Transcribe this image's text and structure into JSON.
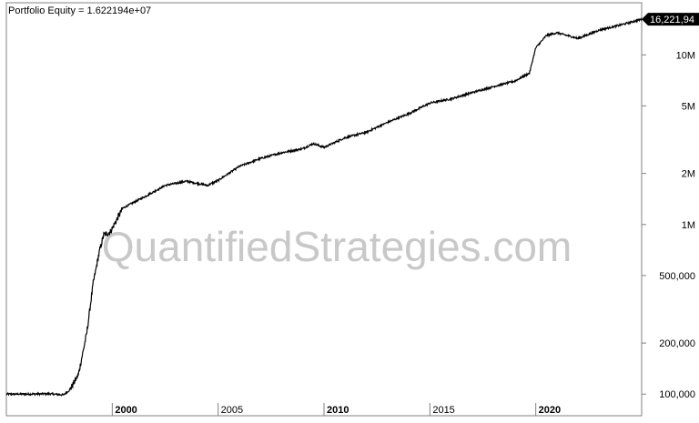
{
  "title": "Portfolio Equity = 1.622194e+07",
  "watermark": "QuantifiedStrategies.com",
  "last_value_label": "16,221,94",
  "colors": {
    "line": "#000000",
    "frame": "#808080",
    "label_bg": "#000000",
    "watermark": "#c8c8c8"
  },
  "chart_data": {
    "type": "line",
    "yscale": "log",
    "ylim": [
      92000,
      17500000
    ],
    "xlim": [
      1995.0,
      2025.0
    ],
    "x_ticks": [
      {
        "value": 2000,
        "label": "2000",
        "bold": true
      },
      {
        "value": 2005,
        "label": "2005",
        "bold": false
      },
      {
        "value": 2010,
        "label": "2010",
        "bold": true
      },
      {
        "value": 2015,
        "label": "2015",
        "bold": false
      },
      {
        "value": 2020,
        "label": "2020",
        "bold": true
      }
    ],
    "y_ticks": [
      {
        "value": 100000,
        "label": "100,000"
      },
      {
        "value": 200000,
        "label": "200,000"
      },
      {
        "value": 500000,
        "label": "500,000"
      },
      {
        "value": 1000000,
        "label": "1M"
      },
      {
        "value": 2000000,
        "label": "2M"
      },
      {
        "value": 5000000,
        "label": "5M"
      },
      {
        "value": 10000000,
        "label": "10M"
      }
    ],
    "series": [
      {
        "x": [
          1995.0,
          1996.0,
          1997.0,
          1997.7,
          1998.0,
          1998.4,
          1998.8,
          1999.1,
          1999.4,
          1999.6,
          1999.9,
          2000.5,
          2001.5,
          2002.5,
          2003.5,
          2004.5,
          2005.0,
          2006.0,
          2007.0,
          2008.0,
          2009.0,
          2009.5,
          2010.0,
          2011.0,
          2012.0,
          2013.0,
          2014.0,
          2015.0,
          2016.0,
          2017.0,
          2018.0,
          2019.0,
          2019.7,
          2020.0,
          2020.5,
          2021.0,
          2022.0,
          2023.0,
          2024.0,
          2025.0
        ],
        "y": [
          100000,
          100000,
          100500,
          99000,
          106000,
          130000,
          230000,
          450000,
          700000,
          870000,
          900000,
          1250000,
          1450000,
          1700000,
          1800000,
          1700000,
          1820000,
          2200000,
          2450000,
          2650000,
          2800000,
          3000000,
          2850000,
          3250000,
          3500000,
          4000000,
          4500000,
          5200000,
          5500000,
          6000000,
          6500000,
          7000000,
          7800000,
          11000000,
          13000000,
          13500000,
          12500000,
          14000000,
          15000000,
          16221940
        ]
      }
    ]
  }
}
